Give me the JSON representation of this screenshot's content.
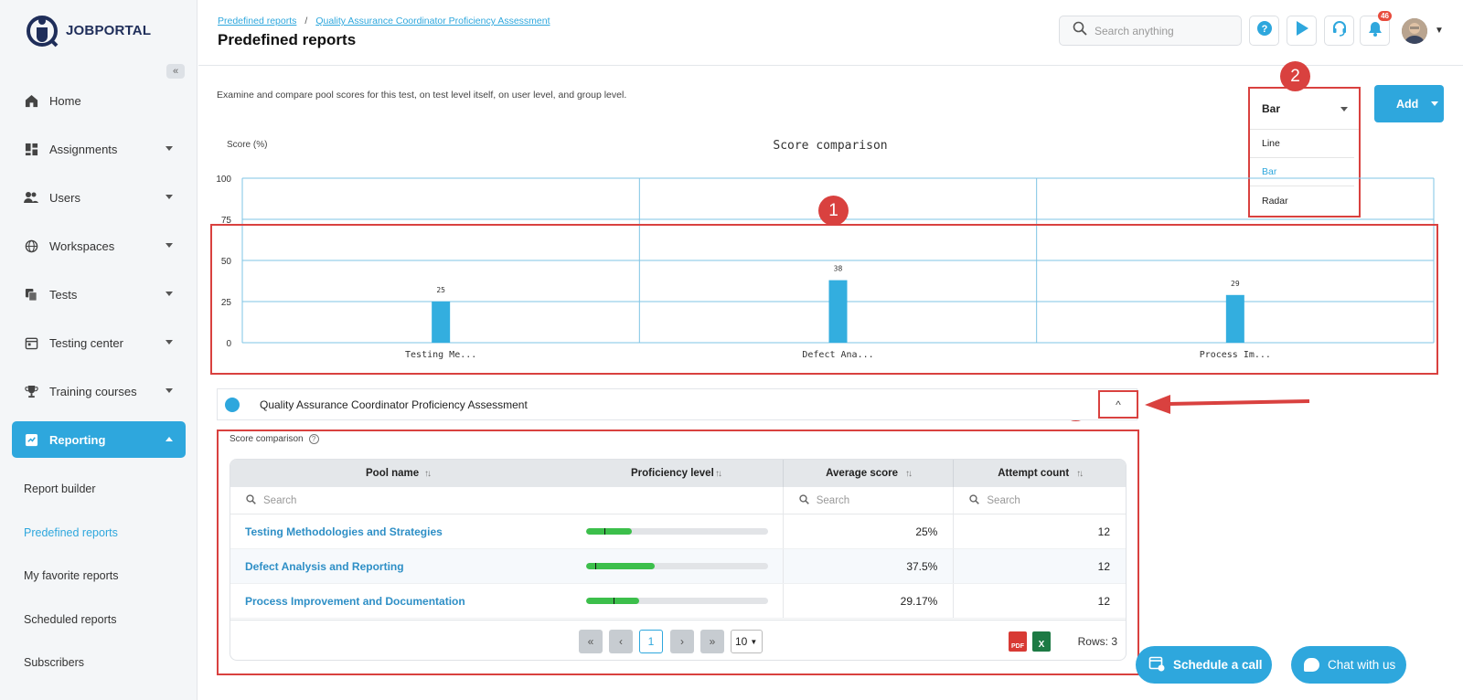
{
  "app": {
    "logo_text": "JOBPORTAL"
  },
  "sidebar": {
    "collapse_glyph": "«",
    "items": [
      {
        "label": "Home",
        "icon": "home-icon",
        "has_caret": false
      },
      {
        "label": "Assignments",
        "icon": "dashboard-icon",
        "has_caret": true
      },
      {
        "label": "Users",
        "icon": "users-icon",
        "has_caret": true
      },
      {
        "label": "Workspaces",
        "icon": "globe-icon",
        "has_caret": true
      },
      {
        "label": "Tests",
        "icon": "copy-icon",
        "has_caret": true
      },
      {
        "label": "Testing center",
        "icon": "calendar-icon",
        "has_caret": true
      },
      {
        "label": "Training courses",
        "icon": "trophy-icon",
        "has_caret": true
      },
      {
        "label": "Reporting",
        "icon": "report-icon",
        "has_caret": true,
        "active": true
      }
    ],
    "subitems": [
      {
        "label": "Report builder"
      },
      {
        "label": "Predefined reports",
        "active": true
      },
      {
        "label": "My favorite reports"
      },
      {
        "label": "Scheduled reports"
      },
      {
        "label": "Subscribers"
      }
    ]
  },
  "header": {
    "breadcrumb": [
      "Predefined reports",
      "Quality Assurance Coordinator Proficiency Assessment"
    ],
    "breadcrumb_sep": "/",
    "title": "Predefined reports",
    "search_placeholder": "Search anything",
    "notification_count": "46"
  },
  "main": {
    "description": "Examine and compare pool scores for this test, on test level itself,  on user level, and group level.",
    "chart_type_select": {
      "selected": "Bar",
      "options": [
        "Line",
        "Bar",
        "Radar"
      ]
    },
    "add_label": "Add",
    "accordion_title": "Quality Assurance Coordinator Proficiency Assessment",
    "section_title": "Score comparison",
    "help_glyph": "?",
    "toggle_glyph": "^",
    "callouts": [
      "1",
      "2",
      "3"
    ]
  },
  "chart_data": {
    "type": "bar",
    "title": "Score comparison",
    "ylabel": "Score (%)",
    "xlabel": "",
    "ylim": [
      0,
      100
    ],
    "yticks": [
      0,
      25,
      50,
      75,
      100
    ],
    "categories": [
      "Testing Me...",
      "Defect Ana...",
      "Process Im..."
    ],
    "values": [
      25,
      38,
      29
    ],
    "data_labels": [
      "25",
      "38",
      "29"
    ],
    "color": "#33aedf",
    "grid": true
  },
  "table": {
    "columns": [
      "Pool name",
      "Proficiency level",
      "Average score",
      "Attempt count"
    ],
    "search_placeholder": "Search",
    "rows": [
      {
        "pool": "Testing Methodologies and Strategies",
        "level": 0.25,
        "marker": 0.1,
        "avg": "25%",
        "attempts": "12"
      },
      {
        "pool": "Defect Analysis and Reporting",
        "level": 0.375,
        "marker": 0.05,
        "avg": "37.5%",
        "attempts": "12"
      },
      {
        "pool": "Process Improvement and Documentation",
        "level": 0.2917,
        "marker": 0.15,
        "avg": "29.17%",
        "attempts": "12"
      }
    ],
    "pager": {
      "current": "1",
      "page_size": "10",
      "rows_label": "Rows: 3",
      "first": "«",
      "prev": "‹",
      "next": "›",
      "last": "»"
    },
    "export": {
      "pdf": "PDF",
      "excel": "X"
    }
  },
  "fabs": {
    "schedule": "Schedule a call",
    "chat": "Chat with us"
  },
  "colors": {
    "accent": "#2ea7dd",
    "highlight": "#d9413f",
    "progress": "#3cbf4b"
  }
}
